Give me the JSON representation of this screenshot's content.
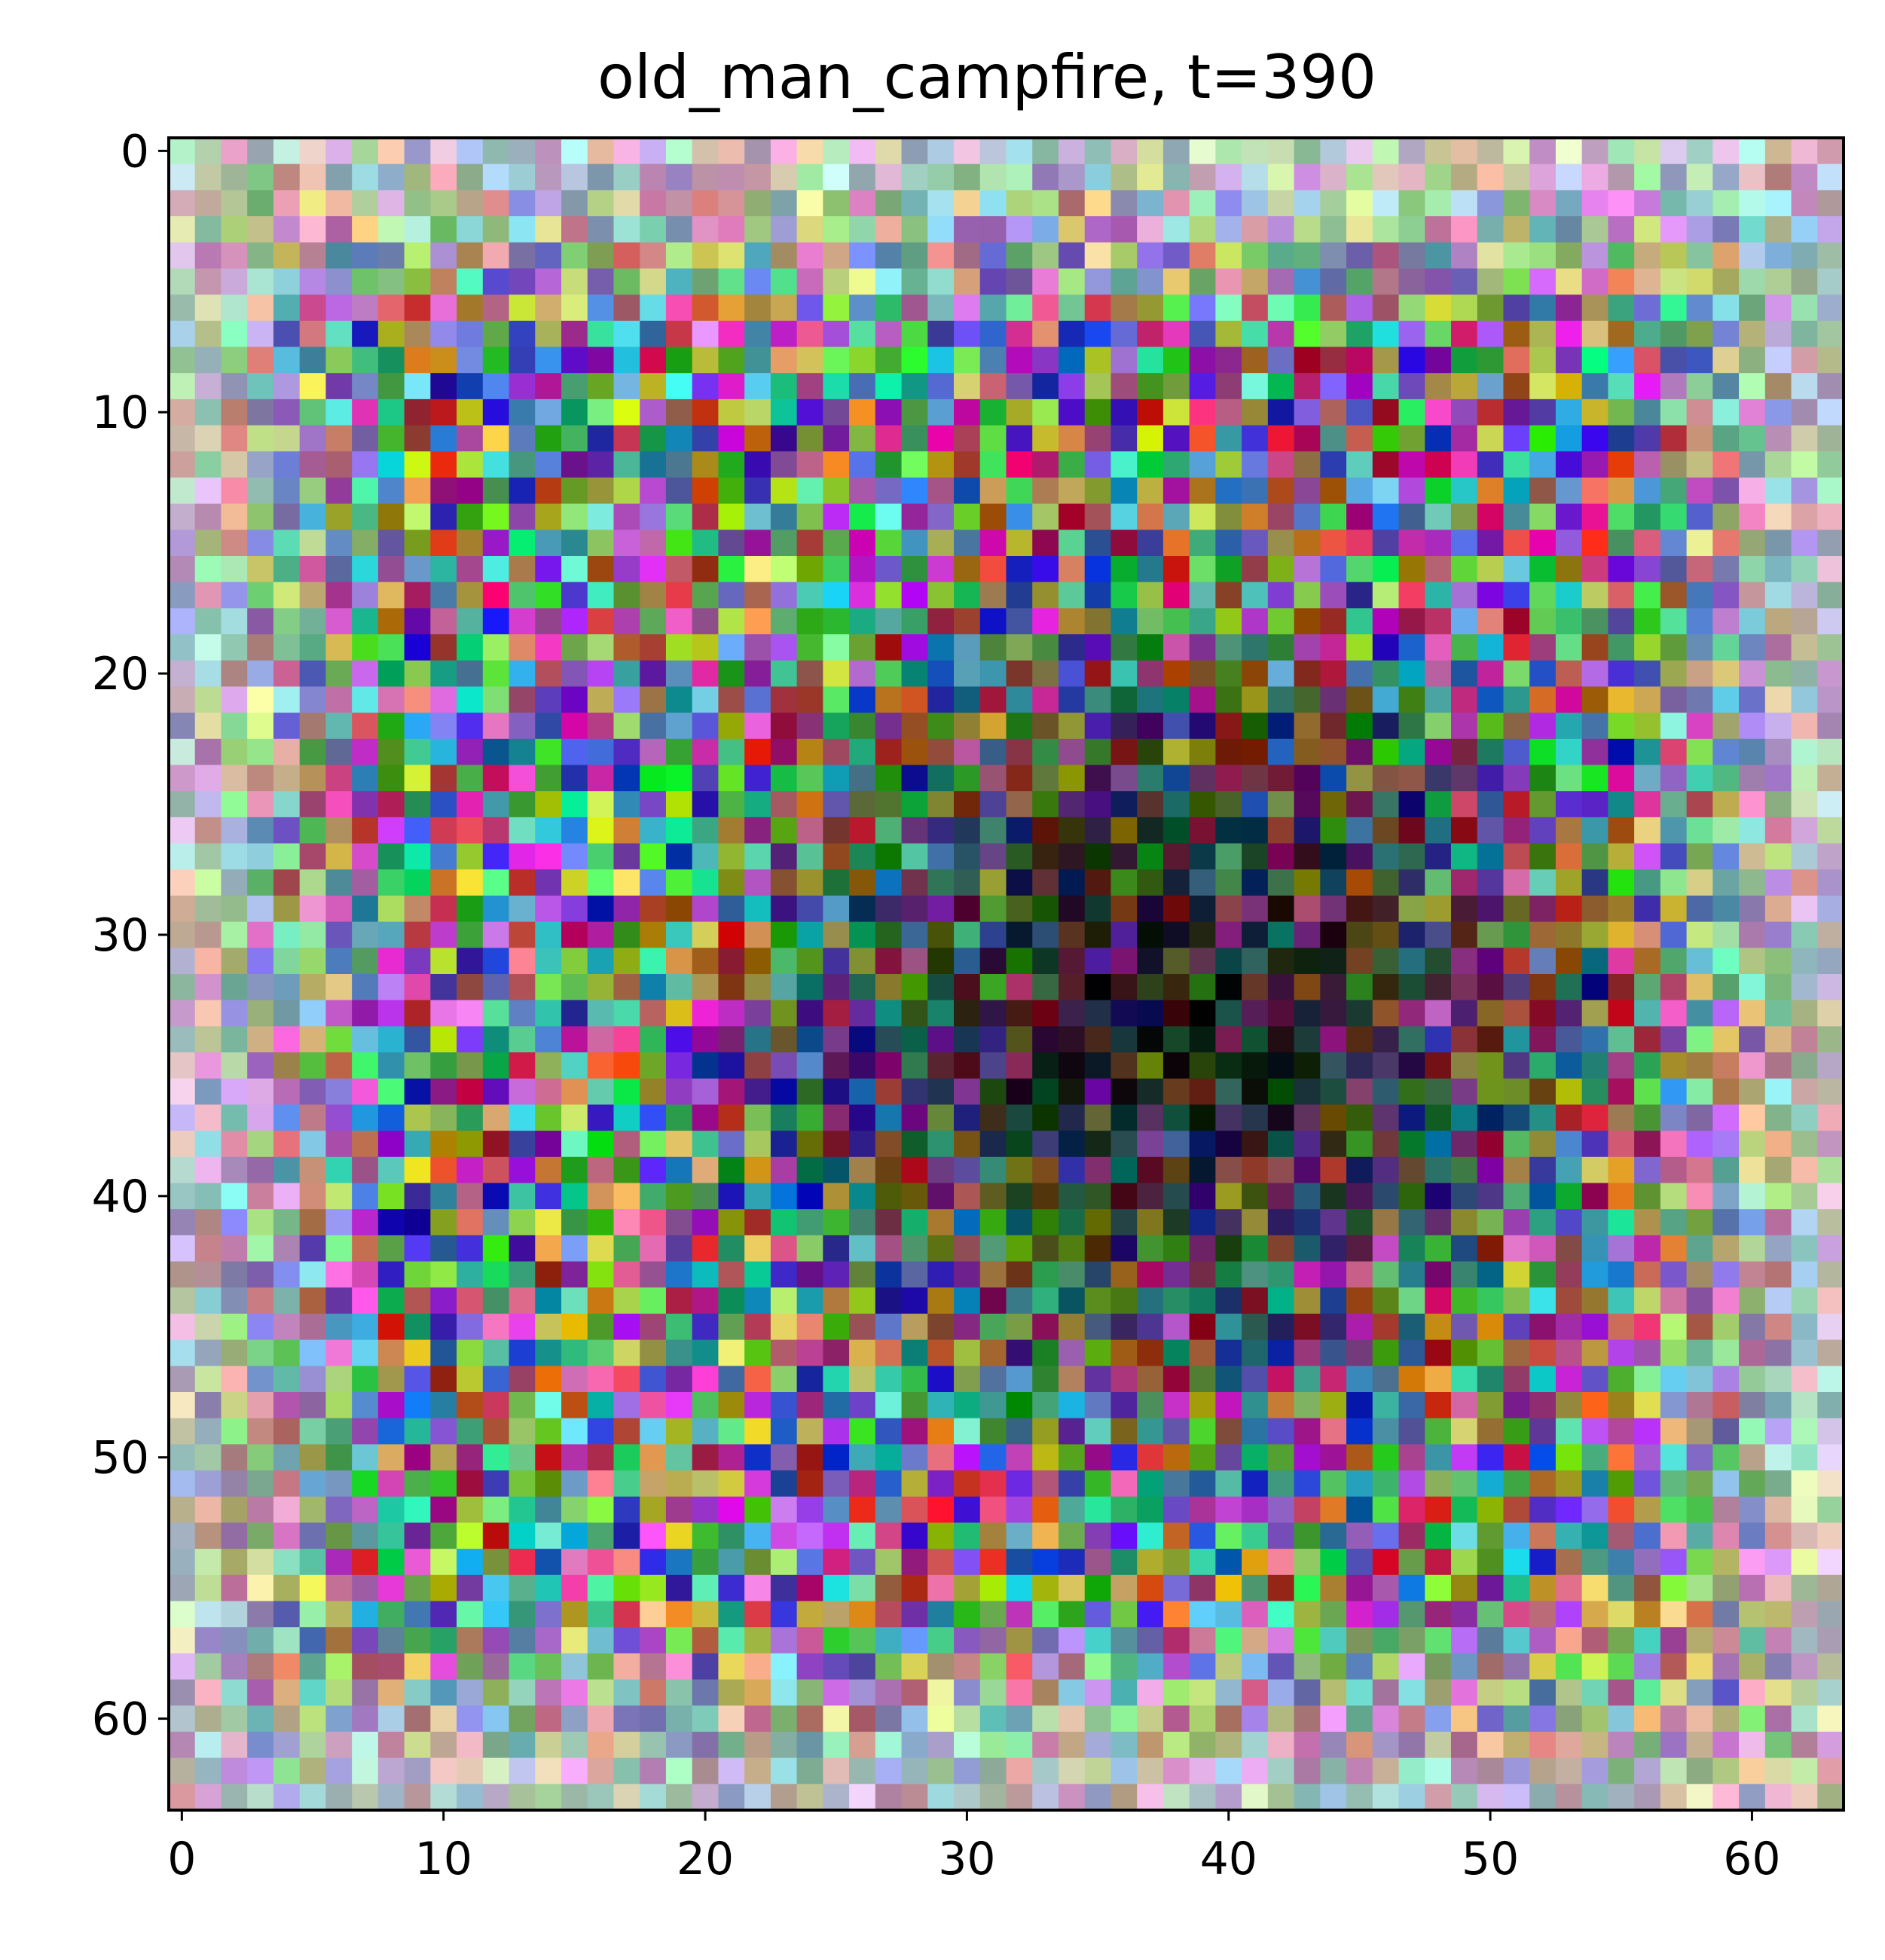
{
  "chart_data": {
    "type": "heatmap",
    "title": "old_man_campfire, t=390",
    "xlabel": "",
    "ylabel": "",
    "xlim": [
      -0.5,
      63.5
    ],
    "ylim": [
      63.5,
      -0.5
    ],
    "grid": false,
    "image_shape": [
      64,
      64,
      3
    ],
    "pixel_values": "64x64 RGB noise image; mostly saturated random colors with a darker, lower-luminance region concentrated roughly in columns 20-55, rows 20-50",
    "x_ticks": [
      0,
      10,
      20,
      30,
      40,
      50,
      60
    ],
    "y_ticks": [
      0,
      10,
      20,
      30,
      40,
      50,
      60
    ],
    "x_tick_labels": [
      "0",
      "10",
      "20",
      "30",
      "40",
      "50",
      "60"
    ],
    "y_tick_labels": [
      "0",
      "10",
      "20",
      "30",
      "40",
      "50",
      "60"
    ],
    "dark_region_center": [
      38,
      33
    ],
    "dark_region_radius": [
      16,
      15
    ]
  }
}
